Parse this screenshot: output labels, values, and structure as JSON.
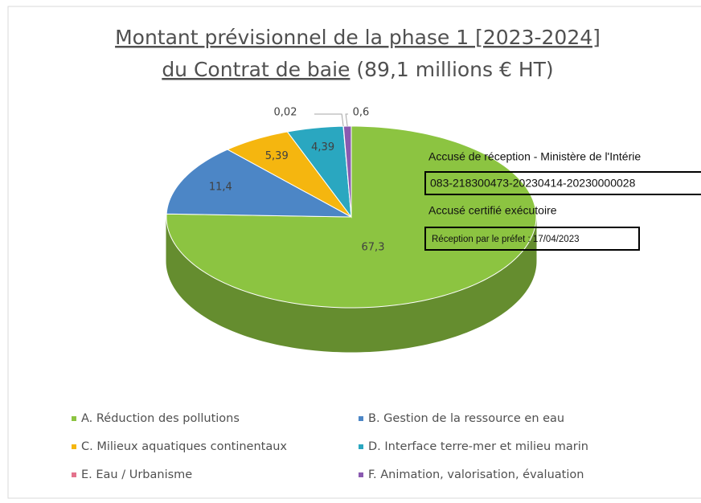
{
  "chart_data": {
    "type": "pie3d",
    "title": [
      "Montant prévisionnel  de la phase 1 [2023-2024]",
      "du Contrat de baie",
      "(89,1 millions € HT)"
    ],
    "categories": [
      "A. Réduction des pollutions",
      "B. Gestion de la ressource en eau",
      "C. Milieux aquatiques continentaux",
      "D. Interface terre-mer et milieu marin",
      "E. Eau / Urbanisme",
      "F. Animation, valorisation, évaluation"
    ],
    "values": [
      67.3,
      11.4,
      5.39,
      4.39,
      0.02,
      0.6
    ],
    "value_labels": [
      "67,3",
      "11,4",
      "5,39",
      "4,39",
      "0,02",
      "0,6"
    ],
    "colors": [
      "#8cc441",
      "#4c86c6",
      "#f5b60f",
      "#2aa7c0",
      "#e4728c",
      "#8a5ab0"
    ],
    "legend": "bottom"
  },
  "stamp": {
    "lines": [
      "Accusé de réception - Ministère de l'Intérie",
      "083-218300473-20230414-20230000028",
      "Accusé certifié exécutoire",
      "Réception par le préfet : 17/04/2023"
    ]
  }
}
